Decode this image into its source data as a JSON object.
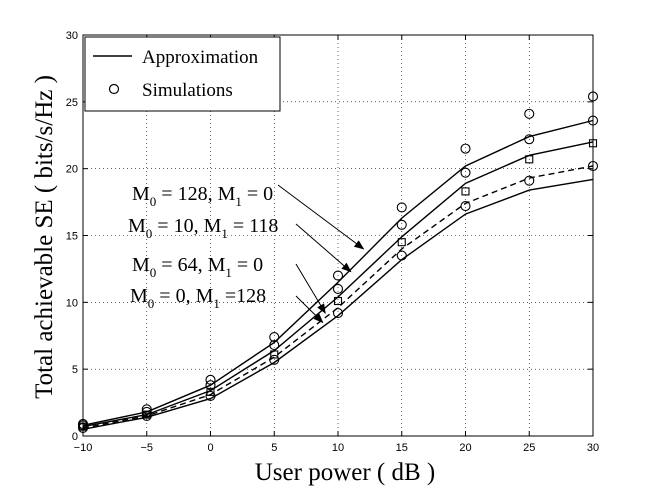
{
  "chart_data": {
    "type": "line",
    "title": "",
    "xlabel": "User power  ( dB )",
    "ylabel": "Total achievable SE ( bits/s/Hz )",
    "xlim": [
      -10,
      30
    ],
    "ylim": [
      0,
      30
    ],
    "xticks": [
      -10,
      -5,
      0,
      5,
      10,
      15,
      20,
      25,
      30
    ],
    "yticks": [
      0,
      5,
      10,
      15,
      20,
      25,
      30
    ],
    "xtick_labels": [
      "−10",
      "−5",
      "0",
      "5",
      "10",
      "15",
      "20",
      "25",
      "30"
    ],
    "ytick_labels": [
      "0",
      "5",
      "10",
      "15",
      "20",
      "25",
      "30"
    ],
    "grid": true,
    "legend": {
      "position": "top-left",
      "entries": [
        {
          "label": "Approximation",
          "marker": "line"
        },
        {
          "label": "Simulations",
          "marker": "circle"
        }
      ]
    },
    "x": [
      -10,
      -5,
      0,
      5,
      10,
      15,
      20,
      25,
      30
    ],
    "series": [
      {
        "config": "M0=128, M1=0",
        "style": "solid",
        "approx": [
          0.8,
          1.8,
          3.8,
          7.0,
          11.5,
          16.3,
          20.2,
          22.4,
          23.6
        ],
        "sim": [
          0.9,
          2.0,
          4.2,
          7.4,
          12.0,
          17.1,
          21.5,
          24.1,
          25.4
        ],
        "sim_marker": "circle"
      },
      {
        "config": "M0=10, M1=118",
        "style": "solid",
        "approx": [
          0.7,
          1.6,
          3.4,
          6.4,
          10.4,
          14.9,
          18.9,
          21.0,
          22.0
        ],
        "sim": [
          0.8,
          1.8,
          3.8,
          6.8,
          11.0,
          15.8,
          19.7,
          22.2,
          23.6
        ],
        "sim_marker": "circle"
      },
      {
        "config": "M0=64, M1=0",
        "style": "dashed",
        "approx": [
          0.6,
          1.5,
          3.1,
          5.9,
          9.6,
          14.0,
          17.4,
          19.3,
          20.2
        ],
        "sim": [
          0.7,
          1.6,
          3.3,
          6.1,
          10.1,
          14.5,
          18.3,
          20.7,
          21.9
        ],
        "sim_marker": "square"
      },
      {
        "config": "M0=0, M1=128",
        "style": "solid",
        "approx": [
          0.5,
          1.4,
          2.8,
          5.5,
          9.0,
          13.2,
          16.6,
          18.4,
          19.2
        ],
        "sim": [
          0.6,
          1.5,
          3.0,
          5.7,
          9.2,
          13.5,
          17.2,
          19.1,
          20.2
        ],
        "sim_marker": "circle"
      }
    ],
    "annotations": [
      {
        "main": "M",
        "sub": "0",
        "rest": " = 128, M",
        "sub2": "1",
        "rest2": " = 0",
        "target": [
          12.0,
          14.0
        ]
      },
      {
        "main": "M",
        "sub": "0",
        "rest": " = 10, M",
        "sub2": "1",
        "rest2": " = 118",
        "target": [
          11.0,
          12.3
        ]
      },
      {
        "main": "M",
        "sub": "0",
        "rest": " = 64, M",
        "sub2": "1",
        "rest2": " =  0",
        "target": [
          9.0,
          9.2
        ]
      },
      {
        "main": "M",
        "sub": "0",
        "rest": " = 0,  M",
        "sub2": "1",
        "rest2": " =128",
        "target": [
          8.8,
          8.5
        ]
      }
    ]
  }
}
